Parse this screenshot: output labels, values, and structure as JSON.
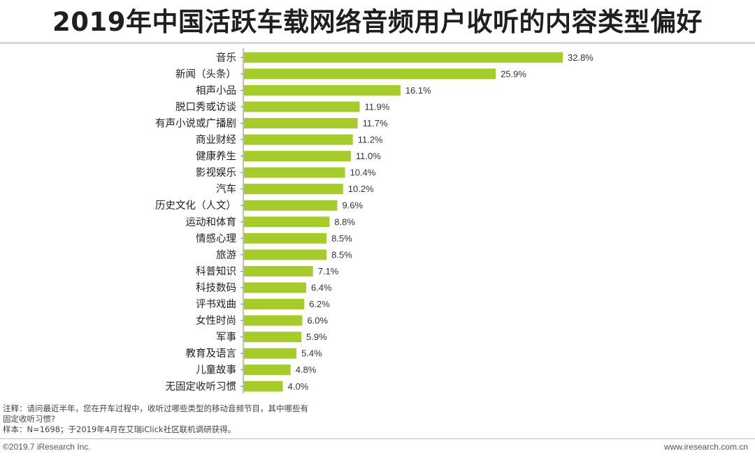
{
  "title": "2019年中国活跃车载网络音频用户收听的内容类型偏好",
  "chart_data": {
    "type": "bar",
    "orientation": "horizontal",
    "categories": [
      "音乐",
      "新闻（头条）",
      "相声小品",
      "脱口秀或访谈",
      "有声小说或广播剧",
      "商业财经",
      "健康养生",
      "影视娱乐",
      "汽车",
      "历史文化（人文）",
      "运动和体育",
      "情感心理",
      "旅游",
      "科普知识",
      "科技数码",
      "评书戏曲",
      "女性时尚",
      "军事",
      "教育及语言",
      "儿童故事",
      "无固定收听习惯"
    ],
    "values": [
      32.8,
      25.9,
      16.1,
      11.9,
      11.7,
      11.2,
      11.0,
      10.4,
      10.2,
      9.6,
      8.8,
      8.5,
      8.5,
      7.1,
      6.4,
      6.2,
      6.0,
      5.9,
      5.4,
      4.8,
      4.0
    ],
    "value_labels": [
      "32.8%",
      "25.9%",
      "16.1%",
      "11.9%",
      "11.7%",
      "11.2%",
      "11.0%",
      "10.4%",
      "10.2%",
      "9.6%",
      "8.8%",
      "8.5%",
      "8.5%",
      "7.1%",
      "6.4%",
      "6.2%",
      "6.0%",
      "5.9%",
      "5.4%",
      "4.8%",
      "4.0%"
    ],
    "xlim": [
      0,
      32.8
    ],
    "bar_color": "#a6cc2a",
    "axis_color": "#7f7f7f",
    "grid": false,
    "legend": false
  },
  "notes": {
    "line1": "注释：请问最近半年，您在开车过程中，收听过哪些类型的移动音频节目，其中哪些有",
    "line2": "固定收听习惯?",
    "line3": "样本：N=1698；于2019年4月在艾瑞iClick社区联机调研获得。"
  },
  "footer": {
    "copyright": "©2019.7 iResearch Inc.",
    "website": "www.iresearch.com.cn"
  }
}
